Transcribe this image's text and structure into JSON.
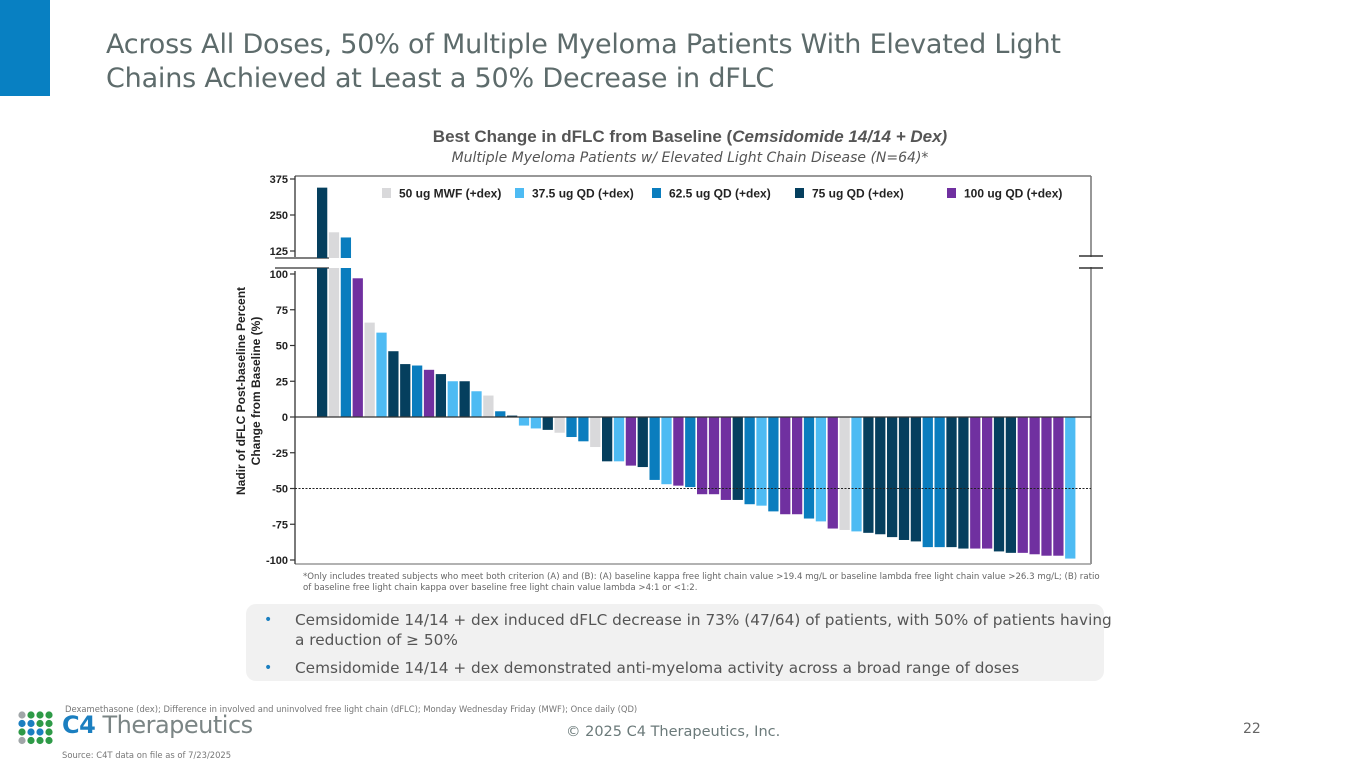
{
  "slide": {
    "title_line1": "Across All Doses, 50% of Multiple Myeloma Patients With Elevated Light",
    "title_line2": "Chains Achieved at Least a 50% Decrease in dFLC",
    "accent_color": "#0880c2",
    "page_number": "22",
    "copyright": "© 2025 C4 Therapeutics, Inc.",
    "abbreviations": "Dexamethasone (dex); Difference in involved and uninvolved free light chain (dFLC); Monday Wednesday Friday (MWF); Once daily (QD)",
    "source": "Source: C4T data on file as of 7/23/2025",
    "logo": {
      "prefix": "C4",
      "suffix": " Therapeutics",
      "icon": "dot-grid-logo-icon"
    }
  },
  "chart_data": {
    "type": "bar",
    "subtype": "waterfall",
    "title_plain": "Best Change in dFLC from Baseline (",
    "title_italic": "Cemsidomide 14/14 + Dex)",
    "subtitle": "Multiple Myeloma Patients w/ Elevated Light Chain Disease (N=64)*",
    "ylabel_line1": "Nadir of dFLC Post-baseline Percent",
    "ylabel_line2": "Change from Baseline (%)",
    "xlabel": "",
    "ylim_lower": [
      -100,
      100
    ],
    "ylim_upper": [
      125,
      375
    ],
    "axis_break": "between 100 and 125",
    "yticks_lower": [
      "100",
      "75",
      "50",
      "25",
      "0",
      "-25",
      "-50",
      "-75",
      "-100"
    ],
    "yticks_upper": [
      "375",
      "250",
      "125"
    ],
    "reference_line": {
      "value": -50,
      "style": "dotted"
    },
    "grid": false,
    "legend_position": "top-center",
    "legend": [
      {
        "key": "mwf50",
        "label": "50 ug MWF (+dex)",
        "color": "#d9d9db"
      },
      {
        "key": "qd37",
        "label": "37.5 ug QD (+dex)",
        "color": "#4ebbf3"
      },
      {
        "key": "qd62",
        "label": "62.5 ug QD (+dex)",
        "color": "#0a7dbe"
      },
      {
        "key": "qd75",
        "label": "75 ug QD (+dex)",
        "color": "#053f5e"
      },
      {
        "key": "qd100",
        "label": "100 ug QD (+dex)",
        "color": "#7030a0"
      }
    ],
    "patients": [
      {
        "dose": "qd75",
        "value": 345
      },
      {
        "dose": "mwf50",
        "value": 190
      },
      {
        "dose": "qd62",
        "value": 172
      },
      {
        "dose": "qd100",
        "value": 97
      },
      {
        "dose": "mwf50",
        "value": 66
      },
      {
        "dose": "qd37",
        "value": 59
      },
      {
        "dose": "qd75",
        "value": 46
      },
      {
        "dose": "qd75",
        "value": 37
      },
      {
        "dose": "qd62",
        "value": 36
      },
      {
        "dose": "qd100",
        "value": 33
      },
      {
        "dose": "qd75",
        "value": 30
      },
      {
        "dose": "qd37",
        "value": 25
      },
      {
        "dose": "qd75",
        "value": 25
      },
      {
        "dose": "qd37",
        "value": 18
      },
      {
        "dose": "mwf50",
        "value": 15
      },
      {
        "dose": "qd62",
        "value": 4
      },
      {
        "dose": "qd75",
        "value": 1
      },
      {
        "dose": "qd37",
        "value": -6
      },
      {
        "dose": "qd37",
        "value": -8
      },
      {
        "dose": "qd75",
        "value": -9
      },
      {
        "dose": "mwf50",
        "value": -11
      },
      {
        "dose": "qd62",
        "value": -14
      },
      {
        "dose": "qd62",
        "value": -17
      },
      {
        "dose": "mwf50",
        "value": -21
      },
      {
        "dose": "qd75",
        "value": -31
      },
      {
        "dose": "qd37",
        "value": -31
      },
      {
        "dose": "qd100",
        "value": -34
      },
      {
        "dose": "qd75",
        "value": -35
      },
      {
        "dose": "qd62",
        "value": -44
      },
      {
        "dose": "qd37",
        "value": -47
      },
      {
        "dose": "qd100",
        "value": -48
      },
      {
        "dose": "qd62",
        "value": -49
      },
      {
        "dose": "qd100",
        "value": -54
      },
      {
        "dose": "qd100",
        "value": -54
      },
      {
        "dose": "qd100",
        "value": -58
      },
      {
        "dose": "qd75",
        "value": -58
      },
      {
        "dose": "qd62",
        "value": -61
      },
      {
        "dose": "qd37",
        "value": -62
      },
      {
        "dose": "qd62",
        "value": -66
      },
      {
        "dose": "qd100",
        "value": -68
      },
      {
        "dose": "qd100",
        "value": -68
      },
      {
        "dose": "qd62",
        "value": -71
      },
      {
        "dose": "qd37",
        "value": -73
      },
      {
        "dose": "qd100",
        "value": -78
      },
      {
        "dose": "mwf50",
        "value": -79
      },
      {
        "dose": "qd37",
        "value": -80
      },
      {
        "dose": "qd75",
        "value": -81
      },
      {
        "dose": "qd75",
        "value": -82
      },
      {
        "dose": "qd75",
        "value": -84
      },
      {
        "dose": "qd75",
        "value": -86
      },
      {
        "dose": "qd75",
        "value": -87
      },
      {
        "dose": "qd62",
        "value": -91
      },
      {
        "dose": "qd62",
        "value": -91
      },
      {
        "dose": "qd75",
        "value": -91
      },
      {
        "dose": "qd75",
        "value": -92
      },
      {
        "dose": "qd100",
        "value": -92
      },
      {
        "dose": "qd100",
        "value": -92
      },
      {
        "dose": "qd75",
        "value": -94
      },
      {
        "dose": "qd75",
        "value": -95
      },
      {
        "dose": "qd100",
        "value": -95
      },
      {
        "dose": "qd100",
        "value": -96
      },
      {
        "dose": "qd100",
        "value": -97
      },
      {
        "dose": "qd100",
        "value": -97
      },
      {
        "dose": "qd37",
        "value": -99
      }
    ],
    "footnote": "*Only includes treated subjects who meet both criterion (A) and (B): (A) baseline kappa free light chain value >19.4 mg/L or baseline lambda free light chain value >26.3 mg/L; (B) ratio of baseline free light chain kappa over baseline free light chain value lambda >4:1 or <1:2."
  },
  "bullets": [
    "Cemsidomide 14/14 + dex induced dFLC decrease in 73% (47/64) of patients, with 50% of patients having a reduction of ≥ 50%",
    "Cemsidomide 14/14 + dex demonstrated anti-myeloma activity across a broad range of doses"
  ],
  "bullet_color": "#1b7fc0"
}
